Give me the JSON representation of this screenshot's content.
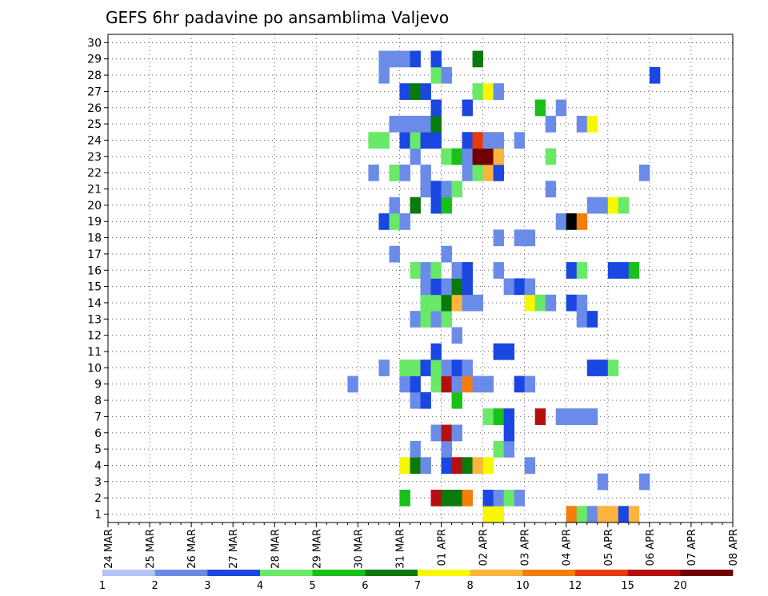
{
  "chart_data": {
    "type": "heatmap",
    "title": "GEFS 6hr padavine po ansamblima Valjevo",
    "xlabel": "",
    "ylabel": "",
    "y_categories": [
      "1",
      "2",
      "3",
      "4",
      "5",
      "6",
      "7",
      "8",
      "9",
      "10",
      "11",
      "12",
      "13",
      "14",
      "15",
      "16",
      "17",
      "18",
      "19",
      "20",
      "21",
      "22",
      "23",
      "24",
      "25",
      "26",
      "27",
      "28",
      "29",
      "30"
    ],
    "date_labels": [
      "24 MAR",
      "25 MAR",
      "26 MAR",
      "27 MAR",
      "28 MAR",
      "29 MAR",
      "30 MAR",
      "31 MAR",
      "01 APR",
      "02 APR",
      "03 APR",
      "04 APR",
      "05 APR",
      "06 APR",
      "07 APR",
      "08 APR"
    ],
    "time_steps_per_day": 4,
    "grid": true,
    "legend": {
      "position": "bottom",
      "labels": [
        "1",
        "2",
        "3",
        "4",
        "5",
        "6",
        "7",
        "8",
        "10",
        "12",
        "15",
        "20"
      ],
      "colors": [
        "#b3c3f3",
        "#6a8ce8",
        "#1a47e0",
        "#6ae868",
        "#18c018",
        "#0a7a0a",
        "#f7f700",
        "#fbb43c",
        "#f47d0b",
        "#e83b0b",
        "#b41010",
        "#700000"
      ]
    },
    "cells": [
      [
        1,
        36,
        6
      ],
      [
        1,
        37,
        6
      ],
      [
        1,
        44,
        8
      ],
      [
        1,
        45,
        3
      ],
      [
        1,
        46,
        1
      ],
      [
        1,
        47,
        7
      ],
      [
        1,
        48,
        7
      ],
      [
        1,
        49,
        2
      ],
      [
        1,
        50,
        7
      ],
      [
        2,
        28,
        4
      ],
      [
        2,
        31,
        10
      ],
      [
        2,
        32,
        5
      ],
      [
        2,
        33,
        5
      ],
      [
        2,
        34,
        8
      ],
      [
        2,
        36,
        2
      ],
      [
        2,
        37,
        1
      ],
      [
        2,
        38,
        3
      ],
      [
        2,
        39,
        1
      ],
      [
        3,
        47,
        1
      ],
      [
        3,
        51,
        1
      ],
      [
        4,
        28,
        6
      ],
      [
        4,
        29,
        5
      ],
      [
        4,
        30,
        1
      ],
      [
        4,
        32,
        2
      ],
      [
        4,
        33,
        10
      ],
      [
        4,
        34,
        5
      ],
      [
        4,
        35,
        7
      ],
      [
        4,
        36,
        6
      ],
      [
        4,
        40,
        1
      ],
      [
        5,
        29,
        1
      ],
      [
        5,
        32,
        1
      ],
      [
        5,
        37,
        3
      ],
      [
        5,
        38,
        1
      ],
      [
        6,
        31,
        1
      ],
      [
        6,
        32,
        10
      ],
      [
        6,
        33,
        1
      ],
      [
        6,
        38,
        2
      ],
      [
        7,
        36,
        3
      ],
      [
        7,
        37,
        4
      ],
      [
        7,
        38,
        2
      ],
      [
        7,
        41,
        10
      ],
      [
        7,
        43,
        1
      ],
      [
        7,
        44,
        1
      ],
      [
        7,
        45,
        1
      ],
      [
        7,
        46,
        1
      ],
      [
        8,
        29,
        1
      ],
      [
        8,
        30,
        2
      ],
      [
        8,
        33,
        4
      ],
      [
        9,
        23,
        1
      ],
      [
        9,
        28,
        1
      ],
      [
        9,
        29,
        2
      ],
      [
        9,
        31,
        3
      ],
      [
        9,
        32,
        10
      ],
      [
        9,
        33,
        1
      ],
      [
        9,
        34,
        8
      ],
      [
        9,
        35,
        1
      ],
      [
        9,
        36,
        1
      ],
      [
        9,
        39,
        2
      ],
      [
        9,
        40,
        1
      ],
      [
        10,
        26,
        1
      ],
      [
        10,
        28,
        3
      ],
      [
        10,
        29,
        3
      ],
      [
        10,
        30,
        2
      ],
      [
        10,
        31,
        3
      ],
      [
        10,
        32,
        1
      ],
      [
        10,
        33,
        2
      ],
      [
        10,
        34,
        1
      ],
      [
        10,
        46,
        2
      ],
      [
        10,
        47,
        2
      ],
      [
        10,
        48,
        3
      ],
      [
        11,
        31,
        2
      ],
      [
        11,
        37,
        2
      ],
      [
        11,
        38,
        2
      ],
      [
        12,
        33,
        1
      ],
      [
        13,
        29,
        1
      ],
      [
        13,
        30,
        3
      ],
      [
        13,
        31,
        1
      ],
      [
        13,
        32,
        3
      ],
      [
        13,
        45,
        1
      ],
      [
        13,
        46,
        2
      ],
      [
        14,
        30,
        3
      ],
      [
        14,
        31,
        3
      ],
      [
        14,
        32,
        5
      ],
      [
        14,
        33,
        7
      ],
      [
        14,
        34,
        1
      ],
      [
        14,
        35,
        1
      ],
      [
        14,
        40,
        6
      ],
      [
        14,
        41,
        3
      ],
      [
        14,
        42,
        1
      ],
      [
        14,
        44,
        2
      ],
      [
        14,
        45,
        1
      ],
      [
        15,
        30,
        1
      ],
      [
        15,
        31,
        2
      ],
      [
        15,
        32,
        1
      ],
      [
        15,
        33,
        5
      ],
      [
        15,
        34,
        2
      ],
      [
        15,
        38,
        1
      ],
      [
        15,
        39,
        2
      ],
      [
        15,
        40,
        1
      ],
      [
        16,
        29,
        3
      ],
      [
        16,
        30,
        1
      ],
      [
        16,
        31,
        3
      ],
      [
        16,
        33,
        1
      ],
      [
        16,
        34,
        2
      ],
      [
        16,
        37,
        1
      ],
      [
        16,
        44,
        2
      ],
      [
        16,
        45,
        3
      ],
      [
        16,
        48,
        2
      ],
      [
        16,
        49,
        2
      ],
      [
        16,
        50,
        4
      ],
      [
        17,
        27,
        1
      ],
      [
        17,
        32,
        1
      ],
      [
        18,
        37,
        1
      ],
      [
        18,
        39,
        1
      ],
      [
        18,
        40,
        1
      ],
      [
        19,
        26,
        2
      ],
      [
        19,
        27,
        3
      ],
      [
        19,
        28,
        1
      ],
      [
        19,
        43,
        1
      ],
      [
        19,
        44,
        12
      ],
      [
        19,
        45,
        8
      ],
      [
        20,
        27,
        1
      ],
      [
        20,
        29,
        5
      ],
      [
        20,
        31,
        2
      ],
      [
        20,
        32,
        4
      ],
      [
        20,
        46,
        1
      ],
      [
        20,
        47,
        1
      ],
      [
        20,
        48,
        6
      ],
      [
        20,
        49,
        3
      ],
      [
        21,
        30,
        1
      ],
      [
        21,
        31,
        2
      ],
      [
        21,
        32,
        1
      ],
      [
        21,
        33,
        3
      ],
      [
        21,
        42,
        1
      ],
      [
        22,
        25,
        1
      ],
      [
        22,
        27,
        3
      ],
      [
        22,
        28,
        1
      ],
      [
        22,
        30,
        1
      ],
      [
        22,
        34,
        1
      ],
      [
        22,
        35,
        3
      ],
      [
        22,
        36,
        7
      ],
      [
        22,
        37,
        2
      ],
      [
        22,
        51,
        1
      ],
      [
        23,
        29,
        1
      ],
      [
        23,
        32,
        3
      ],
      [
        23,
        33,
        4
      ],
      [
        23,
        34,
        1
      ],
      [
        23,
        35,
        11
      ],
      [
        23,
        36,
        11
      ],
      [
        23,
        37,
        7
      ],
      [
        23,
        42,
        3
      ],
      [
        24,
        25,
        3
      ],
      [
        24,
        26,
        3
      ],
      [
        24,
        28,
        2
      ],
      [
        24,
        29,
        3
      ],
      [
        24,
        30,
        2
      ],
      [
        24,
        31,
        2
      ],
      [
        24,
        34,
        2
      ],
      [
        24,
        35,
        9
      ],
      [
        24,
        36,
        1
      ],
      [
        24,
        37,
        1
      ],
      [
        24,
        39,
        1
      ],
      [
        25,
        27,
        1
      ],
      [
        25,
        28,
        1
      ],
      [
        25,
        29,
        1
      ],
      [
        25,
        30,
        1
      ],
      [
        25,
        31,
        5
      ],
      [
        25,
        42,
        1
      ],
      [
        25,
        45,
        1
      ],
      [
        25,
        46,
        6
      ],
      [
        26,
        31,
        2
      ],
      [
        26,
        34,
        2
      ],
      [
        26,
        41,
        4
      ],
      [
        26,
        43,
        1
      ],
      [
        27,
        28,
        2
      ],
      [
        27,
        29,
        5
      ],
      [
        27,
        30,
        2
      ],
      [
        27,
        35,
        3
      ],
      [
        27,
        36,
        6
      ],
      [
        27,
        37,
        1
      ],
      [
        28,
        26,
        1
      ],
      [
        28,
        31,
        3
      ],
      [
        28,
        32,
        1
      ],
      [
        28,
        52,
        2
      ],
      [
        29,
        26,
        1
      ],
      [
        29,
        27,
        1
      ],
      [
        29,
        28,
        1
      ],
      [
        29,
        29,
        2
      ],
      [
        29,
        31,
        2
      ],
      [
        29,
        35,
        5
      ]
    ]
  }
}
